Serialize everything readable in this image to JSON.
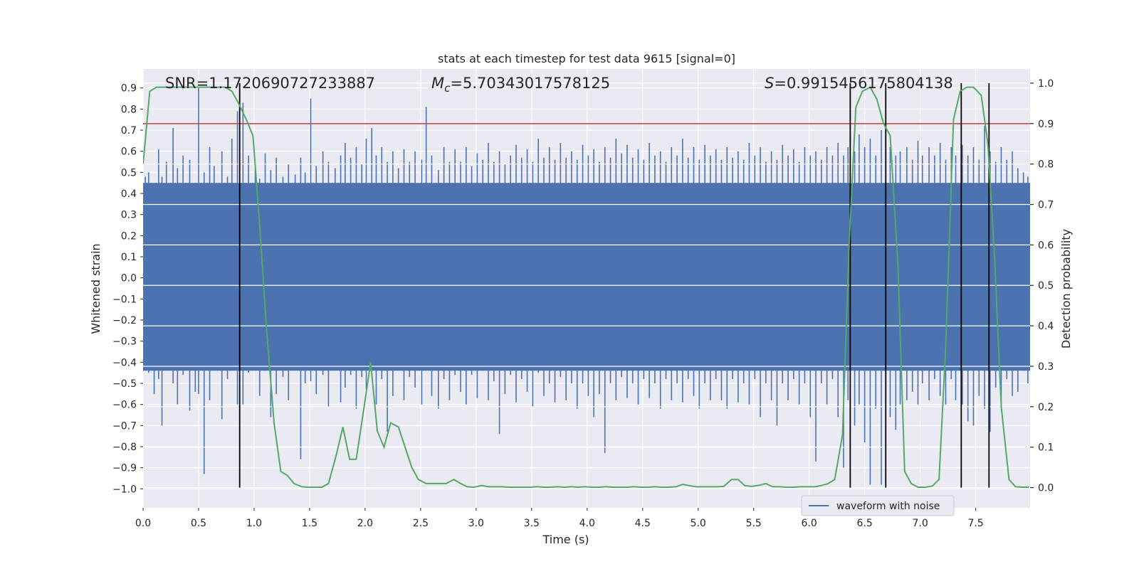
{
  "chart_data": {
    "type": "line",
    "title": "stats at each timestep for test data 9615 [signal=0]",
    "xlabel": "Time (s)",
    "ylabel_left": "Whitened strain",
    "ylabel_right": "Detection probability",
    "xlim": [
      0.0,
      7.99
    ],
    "ylim_left": [
      -1.09,
      0.99
    ],
    "ylim_right": [
      -0.05,
      1.035
    ],
    "x_ticks": [
      0.0,
      0.5,
      1.0,
      1.5,
      2.0,
      2.5,
      3.0,
      3.5,
      4.0,
      4.5,
      5.0,
      5.5,
      6.0,
      6.5,
      7.0,
      7.5
    ],
    "x_tick_labels": [
      "0.0",
      "0.5",
      "1.0",
      "1.5",
      "2.0",
      "2.5",
      "3.0",
      "3.5",
      "4.0",
      "4.5",
      "5.0",
      "5.5",
      "6.0",
      "6.5",
      "7.0",
      "7.5"
    ],
    "y_left_ticks": [
      0.9,
      0.8,
      0.7,
      0.6,
      0.5,
      0.4,
      0.3,
      0.2,
      0.1,
      0.0,
      -0.1,
      -0.2,
      -0.3,
      -0.4,
      -0.5,
      -0.6,
      -0.7,
      -0.8,
      -0.9,
      -1.0
    ],
    "y_left_tick_labels": [
      "0.9",
      "0.8",
      "0.7",
      "0.6",
      "0.5",
      "0.4",
      "0.3",
      "0.2",
      "0.1",
      "0.0",
      "−0.1",
      "−0.2",
      "−0.3",
      "−0.4",
      "−0.5",
      "−0.6",
      "−0.7",
      "−0.8",
      "−0.9",
      "−1.0"
    ],
    "y_right_ticks": [
      1.0,
      0.9,
      0.8,
      0.7,
      0.6,
      0.5,
      0.4,
      0.3,
      0.2,
      0.1,
      0.0
    ],
    "y_right_tick_labels": [
      "1.0",
      "0.9",
      "0.8",
      "0.7",
      "0.6",
      "0.5",
      "0.4",
      "0.3",
      "0.2",
      "0.1",
      "0.0"
    ],
    "annotations": {
      "snr": "SNR=1.1720690727233887",
      "mc_symbol": "M",
      "mc_sub": "c",
      "mc_value": "=5.70343017578125",
      "s_symbol": "S",
      "s_value": "=0.9915456175804138"
    },
    "threshold": {
      "axis": "right",
      "value": 0.9,
      "color": "#c44e52"
    },
    "vertical_lines": [
      0.87,
      6.37,
      6.69,
      7.37,
      7.62
    ],
    "waveform": {
      "name": "waveform with noise",
      "color": "#4c72b0",
      "band_low": -0.44,
      "band_high": 0.45,
      "spikes": [
        [
          0.02,
          0.48,
          -0.38
        ],
        [
          0.05,
          0.5,
          -0.45
        ],
        [
          0.1,
          0.42,
          -0.55
        ],
        [
          0.14,
          0.61,
          -0.48
        ],
        [
          0.17,
          0.48,
          -0.7
        ],
        [
          0.21,
          0.55,
          -0.42
        ],
        [
          0.27,
          0.71,
          -0.5
        ],
        [
          0.31,
          0.52,
          -0.6
        ],
        [
          0.36,
          0.58,
          -0.46
        ],
        [
          0.42,
          0.56,
          -0.63
        ],
        [
          0.47,
          0.44,
          -0.54
        ],
        [
          0.5,
          0.9,
          -0.55
        ],
        [
          0.55,
          0.5,
          -0.93
        ],
        [
          0.6,
          0.62,
          -0.58
        ],
        [
          0.64,
          0.53,
          -0.41
        ],
        [
          0.71,
          0.6,
          -0.67
        ],
        [
          0.76,
          0.48,
          -0.48
        ],
        [
          0.8,
          0.66,
          -0.41
        ],
        [
          0.85,
          0.79,
          -0.6
        ],
        [
          0.9,
          0.83,
          -0.6
        ],
        [
          0.95,
          0.58,
          -0.45
        ],
        [
          1.01,
          0.52,
          -0.38
        ],
        [
          1.05,
          0.47,
          -0.56
        ],
        [
          1.1,
          0.59,
          -0.44
        ],
        [
          1.15,
          0.51,
          -0.66
        ],
        [
          1.2,
          0.57,
          -0.55
        ],
        [
          1.26,
          0.48,
          -0.47
        ],
        [
          1.31,
          0.54,
          -0.58
        ],
        [
          1.37,
          0.49,
          -0.4
        ],
        [
          1.42,
          0.57,
          -0.86
        ],
        [
          1.46,
          0.5,
          -0.5
        ],
        [
          1.51,
          0.85,
          -0.49
        ],
        [
          1.56,
          0.53,
          -0.55
        ],
        [
          1.62,
          0.6,
          -0.46
        ],
        [
          1.67,
          0.55,
          -0.61
        ],
        [
          1.73,
          0.52,
          -0.43
        ],
        [
          1.78,
          0.58,
          -0.59
        ],
        [
          1.82,
          0.64,
          -0.52
        ],
        [
          1.87,
          0.57,
          -0.46
        ],
        [
          1.92,
          0.62,
          -0.62
        ],
        [
          1.97,
          0.54,
          -0.47
        ],
        [
          2.01,
          0.66,
          -0.53
        ],
        [
          2.06,
          0.71,
          -0.44
        ],
        [
          2.1,
          0.58,
          -0.6
        ],
        [
          2.15,
          0.62,
          -0.48
        ],
        [
          2.2,
          0.55,
          -0.73
        ],
        [
          2.25,
          0.6,
          -0.56
        ],
        [
          2.3,
          0.52,
          -0.44
        ],
        [
          2.35,
          0.61,
          -0.58
        ],
        [
          2.4,
          0.55,
          -0.47
        ],
        [
          2.45,
          0.6,
          -0.52
        ],
        [
          2.51,
          0.56,
          -0.6
        ],
        [
          2.55,
          0.81,
          -0.44
        ],
        [
          2.6,
          0.58,
          -0.56
        ],
        [
          2.66,
          0.51,
          -0.62
        ],
        [
          2.71,
          0.62,
          -0.48
        ],
        [
          2.76,
          0.55,
          -0.58
        ],
        [
          2.81,
          0.61,
          -0.46
        ],
        [
          2.86,
          0.55,
          -0.54
        ],
        [
          2.91,
          0.62,
          -0.6
        ],
        [
          2.96,
          0.53,
          -0.46
        ],
        [
          3.01,
          0.59,
          -0.57
        ],
        [
          3.06,
          0.56,
          -0.44
        ],
        [
          3.11,
          0.64,
          -0.58
        ],
        [
          3.16,
          0.55,
          -0.49
        ],
        [
          3.21,
          0.6,
          -0.74
        ],
        [
          3.26,
          0.54,
          -0.55
        ],
        [
          3.31,
          0.58,
          -0.46
        ],
        [
          3.36,
          0.63,
          -0.59
        ],
        [
          3.41,
          0.57,
          -0.48
        ],
        [
          3.46,
          0.61,
          -0.54
        ],
        [
          3.51,
          0.55,
          -0.61
        ],
        [
          3.56,
          0.66,
          -0.45
        ],
        [
          3.61,
          0.57,
          -0.56
        ],
        [
          3.66,
          0.62,
          -0.5
        ],
        [
          3.71,
          0.56,
          -0.59
        ],
        [
          3.76,
          0.64,
          -0.47
        ],
        [
          3.81,
          0.57,
          -0.58
        ],
        [
          3.86,
          0.6,
          -0.5
        ],
        [
          3.91,
          0.56,
          -0.62
        ],
        [
          3.96,
          0.63,
          -0.5
        ],
        [
          4.01,
          0.58,
          -0.56
        ],
        [
          4.06,
          0.61,
          -0.66
        ],
        [
          4.11,
          0.55,
          -0.55
        ],
        [
          4.16,
          0.62,
          -0.83
        ],
        [
          4.21,
          0.57,
          -0.5
        ],
        [
          4.26,
          0.66,
          -0.58
        ],
        [
          4.31,
          0.59,
          -0.47
        ],
        [
          4.36,
          0.63,
          -0.57
        ],
        [
          4.41,
          0.57,
          -0.5
        ],
        [
          4.46,
          0.61,
          -0.6
        ],
        [
          4.51,
          0.56,
          -0.48
        ],
        [
          4.56,
          0.64,
          -0.57
        ],
        [
          4.61,
          0.58,
          -0.5
        ],
        [
          4.66,
          0.6,
          -0.62
        ],
        [
          4.71,
          0.55,
          -0.48
        ],
        [
          4.76,
          0.62,
          -0.58
        ],
        [
          4.81,
          0.58,
          -0.5
        ],
        [
          4.86,
          0.66,
          -0.59
        ],
        [
          4.91,
          0.57,
          -0.48
        ],
        [
          4.96,
          0.62,
          -0.56
        ],
        [
          5.01,
          0.56,
          -0.62
        ],
        [
          5.06,
          0.63,
          -0.5
        ],
        [
          5.11,
          0.58,
          -0.58
        ],
        [
          5.16,
          0.61,
          -0.48
        ],
        [
          5.21,
          0.56,
          -0.58
        ],
        [
          5.26,
          0.62,
          -0.62
        ],
        [
          5.31,
          0.57,
          -0.48
        ],
        [
          5.36,
          0.6,
          -0.59
        ],
        [
          5.41,
          0.56,
          -0.5
        ],
        [
          5.46,
          0.64,
          -0.6
        ],
        [
          5.51,
          0.58,
          -0.48
        ],
        [
          5.56,
          0.62,
          -0.66
        ],
        [
          5.61,
          0.55,
          -0.5
        ],
        [
          5.66,
          0.6,
          -0.58
        ],
        [
          5.71,
          0.56,
          -0.7
        ],
        [
          5.76,
          0.63,
          -0.5
        ],
        [
          5.81,
          0.58,
          -0.58
        ],
        [
          5.86,
          0.61,
          -0.48
        ],
        [
          5.91,
          0.55,
          -0.6
        ],
        [
          5.96,
          0.62,
          -0.5
        ],
        [
          6.01,
          0.58,
          -0.66
        ],
        [
          6.06,
          0.6,
          -0.87
        ],
        [
          6.11,
          0.56,
          -0.5
        ],
        [
          6.16,
          0.62,
          -0.6
        ],
        [
          6.21,
          0.58,
          -0.48
        ],
        [
          6.26,
          0.64,
          -0.66
        ],
        [
          6.31,
          0.58,
          -0.9
        ],
        [
          6.35,
          0.62,
          -0.58
        ],
        [
          6.41,
          0.6,
          -0.7
        ],
        [
          6.45,
          0.68,
          -0.6
        ],
        [
          6.5,
          0.62,
          -0.78
        ],
        [
          6.55,
          0.66,
          -0.98
        ],
        [
          6.6,
          0.58,
          -0.62
        ],
        [
          6.65,
          0.7,
          -0.98
        ],
        [
          6.69,
          0.6,
          -0.58
        ],
        [
          6.73,
          0.62,
          -0.66
        ],
        [
          6.78,
          0.58,
          -0.72
        ],
        [
          6.82,
          0.6,
          -0.6
        ],
        [
          6.88,
          0.62,
          -0.58
        ],
        [
          6.93,
          0.56,
          -0.54
        ],
        [
          6.98,
          0.65,
          -0.6
        ],
        [
          7.02,
          0.58,
          -0.5
        ],
        [
          7.08,
          0.62,
          -0.58
        ],
        [
          7.13,
          0.58,
          -0.48
        ],
        [
          7.18,
          0.64,
          -0.56
        ],
        [
          7.23,
          0.56,
          -0.6
        ],
        [
          7.28,
          0.62,
          -0.48
        ],
        [
          7.32,
          0.58,
          -0.58
        ],
        [
          7.38,
          0.63,
          -0.6
        ],
        [
          7.43,
          0.58,
          -0.68
        ],
        [
          7.48,
          0.62,
          -0.7
        ],
        [
          7.53,
          0.56,
          -0.56
        ],
        [
          7.58,
          0.72,
          -0.62
        ],
        [
          7.63,
          0.6,
          -0.73
        ],
        [
          7.68,
          0.55,
          -0.52
        ],
        [
          7.73,
          0.62,
          -0.6
        ],
        [
          7.78,
          0.56,
          -0.48
        ],
        [
          7.83,
          0.6,
          -0.56
        ],
        [
          7.88,
          0.52,
          -0.54
        ],
        [
          7.93,
          0.5,
          -0.44
        ],
        [
          7.97,
          0.48,
          -0.5
        ]
      ]
    },
    "probability": {
      "name": "detection probability",
      "color": "#55a868",
      "x": [
        0.0,
        0.06,
        0.12,
        0.18,
        0.24,
        0.3,
        0.37,
        0.43,
        0.5,
        0.56,
        0.62,
        0.68,
        0.74,
        0.8,
        0.86,
        0.93,
        0.99,
        1.05,
        1.11,
        1.18,
        1.24,
        1.3,
        1.36,
        1.43,
        1.49,
        1.55,
        1.61,
        1.67,
        1.74,
        1.8,
        1.86,
        1.92,
        1.98,
        2.05,
        2.11,
        2.17,
        2.23,
        2.3,
        2.36,
        2.42,
        2.48,
        2.55,
        2.61,
        2.67,
        2.73,
        2.8,
        2.86,
        2.92,
        2.98,
        3.05,
        3.11,
        3.17,
        3.23,
        3.3,
        3.36,
        3.42,
        3.48,
        3.55,
        3.61,
        3.67,
        3.73,
        3.8,
        3.86,
        3.92,
        3.98,
        4.05,
        4.11,
        4.17,
        4.23,
        4.3,
        4.36,
        4.42,
        4.48,
        4.55,
        4.61,
        4.67,
        4.73,
        4.8,
        4.86,
        4.92,
        4.98,
        5.05,
        5.11,
        5.17,
        5.23,
        5.3,
        5.36,
        5.42,
        5.48,
        5.55,
        5.61,
        5.67,
        5.73,
        5.8,
        5.86,
        5.92,
        5.98,
        6.05,
        6.11,
        6.17,
        6.23,
        6.3,
        6.36,
        6.42,
        6.48,
        6.55,
        6.61,
        6.67,
        6.73,
        6.8,
        6.86,
        6.92,
        6.98,
        7.05,
        7.11,
        7.17,
        7.23,
        7.3,
        7.36,
        7.42,
        7.48,
        7.55,
        7.61,
        7.67,
        7.73,
        7.8,
        7.86,
        7.92,
        7.98
      ],
      "y": [
        0.8,
        0.98,
        0.99,
        0.99,
        0.99,
        0.99,
        0.99,
        0.99,
        0.99,
        0.99,
        0.99,
        0.99,
        0.99,
        0.98,
        0.95,
        0.91,
        0.87,
        0.65,
        0.4,
        0.16,
        0.04,
        0.03,
        0.01,
        0.002,
        0.001,
        0.001,
        0.001,
        0.01,
        0.08,
        0.15,
        0.07,
        0.07,
        0.18,
        0.31,
        0.14,
        0.1,
        0.16,
        0.15,
        0.1,
        0.05,
        0.02,
        0.01,
        0.01,
        0.01,
        0.01,
        0.02,
        0.01,
        0.002,
        0.001,
        0.005,
        0.002,
        0.002,
        0.002,
        0.001,
        0.001,
        0.001,
        0.001,
        0.002,
        0.001,
        0.001,
        0.002,
        0.001,
        0.002,
        0.001,
        0.002,
        0.001,
        0.001,
        0.002,
        0.001,
        0.001,
        0.001,
        0.002,
        0.001,
        0.001,
        0.002,
        0.001,
        0.001,
        0.002,
        0.008,
        0.005,
        0.002,
        0.002,
        0.002,
        0.002,
        0.003,
        0.02,
        0.02,
        0.005,
        0.003,
        0.006,
        0.01,
        0.002,
        0.002,
        0.001,
        0.001,
        0.002,
        0.002,
        0.002,
        0.005,
        0.01,
        0.02,
        0.13,
        0.6,
        0.94,
        0.98,
        0.99,
        0.96,
        0.9,
        0.87,
        0.55,
        0.04,
        0.01,
        0.001,
        0.001,
        0.004,
        0.02,
        0.35,
        0.91,
        0.98,
        0.99,
        0.99,
        0.97,
        0.85,
        0.57,
        0.2,
        0.02,
        0.002,
        0.001,
        0.001
      ]
    }
  }
}
